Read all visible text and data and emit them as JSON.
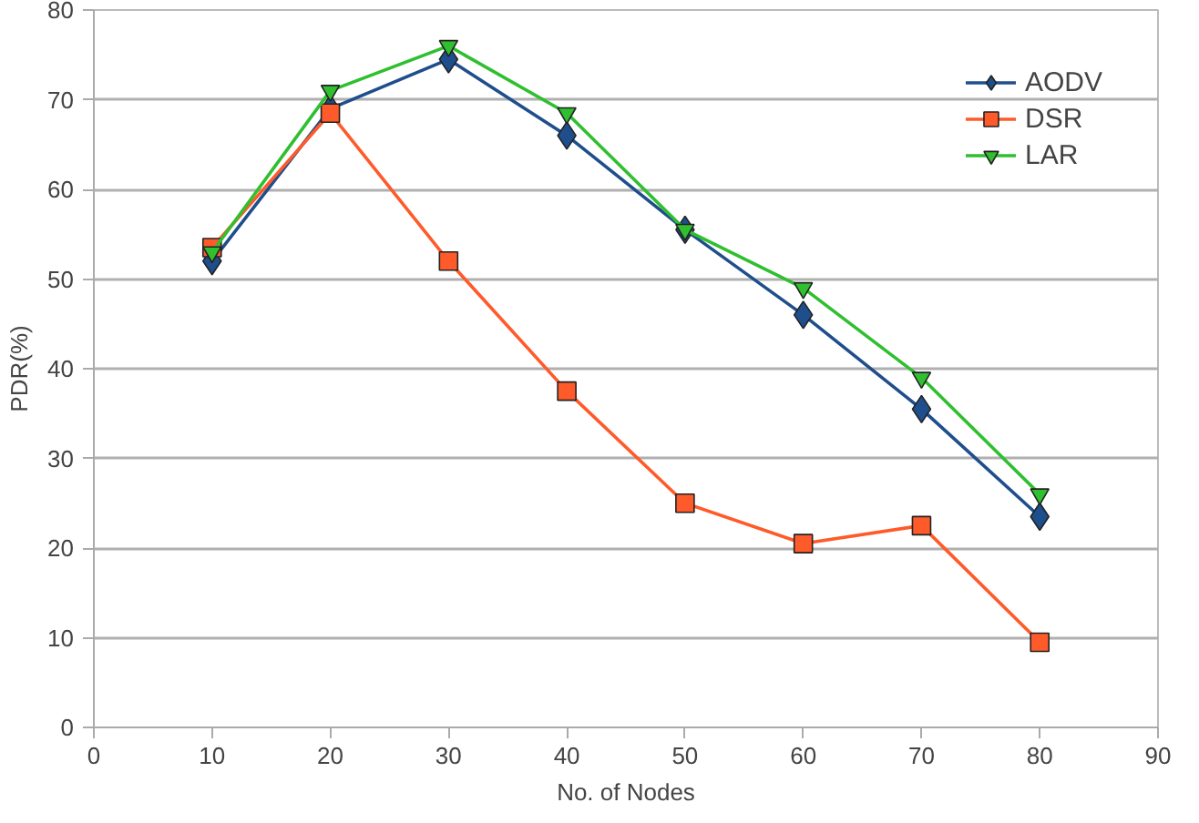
{
  "chart_data": {
    "type": "line",
    "xlabel": "No. of Nodes",
    "ylabel": "PDR(%)",
    "x": [
      10,
      20,
      30,
      40,
      50,
      60,
      70,
      80
    ],
    "series": [
      {
        "name": "AODV",
        "color": "#1f4e8c",
        "marker": "diamond",
        "values": [
          52,
          69,
          74.5,
          66,
          55.5,
          46,
          35.5,
          23.5
        ]
      },
      {
        "name": "DSR",
        "color": "#ff5a2a",
        "marker": "square",
        "values": [
          53.5,
          68.5,
          52,
          37.5,
          25,
          20.5,
          22.5,
          9.5
        ]
      },
      {
        "name": "LAR",
        "color": "#2fbf2f",
        "marker": "triangle",
        "values": [
          53,
          71,
          76,
          68.5,
          55.5,
          49,
          39,
          26
        ]
      }
    ],
    "xlim": [
      0,
      90
    ],
    "xticks": [
      0,
      10,
      20,
      30,
      40,
      50,
      60,
      70,
      80,
      90
    ],
    "ylim": [
      0,
      80
    ],
    "yticks": [
      0,
      10,
      20,
      30,
      40,
      50,
      60,
      70,
      80
    ],
    "grid": "y",
    "legend": "top right"
  }
}
